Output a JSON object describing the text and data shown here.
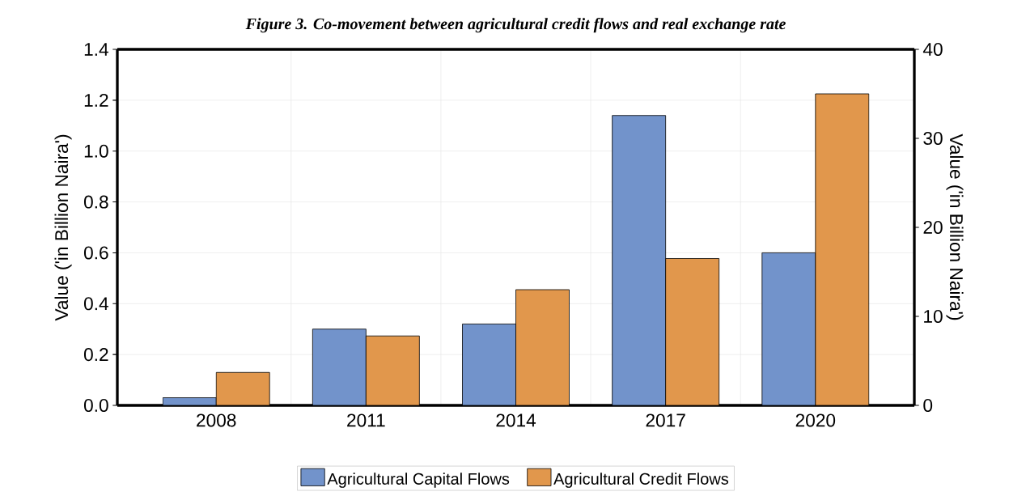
{
  "chart_data": {
    "type": "bar",
    "title": "Figure 3. Co-movement between agricultural credit flows and real exchange rate",
    "categories": [
      "2008",
      "2011",
      "2014",
      "2017",
      "2020"
    ],
    "series": [
      {
        "name": "Agricultural Capital Flows",
        "color": "#7293cb",
        "values": [
          0.03,
          0.3,
          0.32,
          1.14,
          0.6
        ]
      },
      {
        "name": "Agricultural Credit Flows",
        "color": "#e1974c",
        "values": [
          3.7,
          7.8,
          13.0,
          16.5,
          35.0
        ],
        "axis": "y2"
      }
    ],
    "ylabel": "Value ('in Billion Naira')",
    "y2label": "Value ('in Billion Naira')",
    "ylim": [
      0,
      1.4
    ],
    "yticks": [
      {
        "value": 0,
        "label": "0.0"
      },
      {
        "value": 0.2,
        "label": "0.2"
      },
      {
        "value": 0.4,
        "label": "0.4"
      },
      {
        "value": 0.6,
        "label": "0.6"
      },
      {
        "value": 0.8,
        "label": "0.8"
      },
      {
        "value": 1.0,
        "label": "1.0"
      },
      {
        "value": 1.2,
        "label": "1.2"
      },
      {
        "value": 1.4,
        "label": "1.4"
      }
    ],
    "y2lim": [
      0,
      40
    ],
    "y2ticks": [
      0,
      10,
      20,
      30,
      40
    ],
    "grid": true,
    "legend": "bottom"
  }
}
